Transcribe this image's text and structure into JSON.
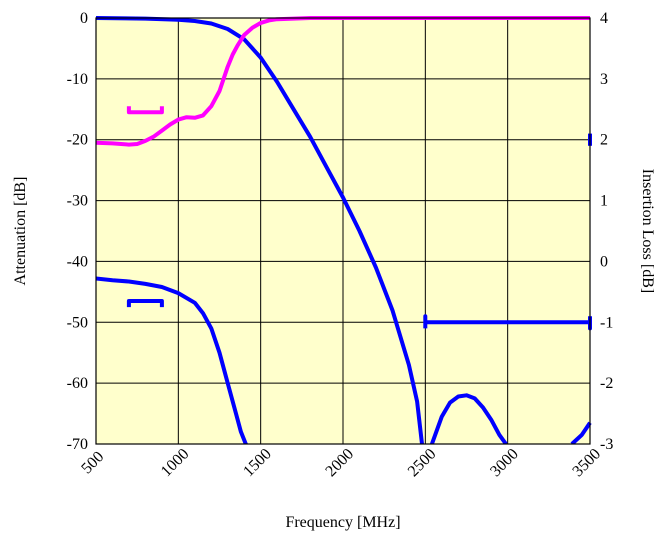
{
  "chart_data": {
    "type": "line",
    "title": "",
    "xlabel": "Frequency [MHz]",
    "ylabel": "Attenuation [dB]",
    "y2label": "Insertion Loss [dB]",
    "xlim": [
      500,
      3500
    ],
    "ylim": [
      -70,
      0
    ],
    "y2lim": [
      -3,
      4
    ],
    "x_ticks": [
      500,
      1000,
      1500,
      2000,
      2500,
      3000,
      3500
    ],
    "y_ticks": [
      0,
      -10,
      -20,
      -30,
      -40,
      -50,
      -60,
      -70
    ],
    "y2_ticks": [
      4,
      3,
      2,
      1,
      0,
      -1,
      -2,
      -3
    ],
    "grid": true,
    "legend": "none",
    "plot_background": "#ffffcc",
    "series": [
      {
        "axis": "left",
        "color": "#0000ff",
        "x": [
          500,
          800,
          1000,
          1100,
          1200,
          1300,
          1400,
          1450,
          1500,
          1550,
          1600,
          1700,
          1800,
          1900,
          2000,
          2100,
          2200,
          2300,
          2400,
          2450,
          2480
        ],
        "y": [
          0,
          -0.1,
          -0.3,
          -0.5,
          -0.9,
          -1.8,
          -3.5,
          -5,
          -6.5,
          -8.5,
          -10.5,
          -15,
          -19.5,
          -24.5,
          -29.5,
          -35,
          -41,
          -48,
          -57,
          -63,
          -70
        ]
      },
      {
        "axis": "left",
        "color": "#0000ff",
        "x": [
          2540,
          2600,
          2650,
          2700,
          2750,
          2800,
          2850,
          2900,
          2950,
          2990
        ],
        "y": [
          -70,
          -65.5,
          -63.2,
          -62.2,
          -62.0,
          -62.5,
          -64.0,
          -66.0,
          -68.5,
          -70
        ]
      },
      {
        "axis": "left",
        "color": "#0000ff",
        "x": [
          3390,
          3450,
          3500
        ],
        "y": [
          -70,
          -68.5,
          -66.5
        ]
      },
      {
        "axis": "right",
        "color": "#ff00ff",
        "x": [
          500,
          600,
          700,
          750,
          800,
          850,
          900,
          950,
          1000,
          1050,
          1100,
          1150,
          1200,
          1250,
          1300,
          1330,
          1360,
          1400,
          1450,
          1500,
          1550,
          1600,
          1700,
          1800,
          2000,
          2500,
          3000,
          3500
        ],
        "y": [
          1.95,
          1.94,
          1.92,
          1.93,
          1.98,
          2.05,
          2.15,
          2.25,
          2.33,
          2.37,
          2.36,
          2.4,
          2.55,
          2.8,
          3.2,
          3.4,
          3.55,
          3.72,
          3.84,
          3.92,
          3.96,
          3.98,
          3.99,
          4.0,
          4.0,
          4.0,
          4.0,
          4.0
        ]
      },
      {
        "axis": "right",
        "color": "#ff00ff",
        "x": [
          700,
          700,
          900,
          900
        ],
        "y": [
          2.55,
          2.45,
          2.45,
          2.55
        ]
      },
      {
        "axis": "left",
        "color": "#0000ff",
        "x": [
          500,
          600,
          700,
          800,
          900,
          1000,
          1100,
          1150,
          1200,
          1250,
          1300,
          1350,
          1380,
          1410,
          1440
        ],
        "y": [
          -42.8,
          -43.1,
          -43.3,
          -43.7,
          -44.2,
          -45.2,
          -46.8,
          -48.5,
          -51,
          -55,
          -60,
          -65,
          -68,
          -70,
          -71.5
        ]
      },
      {
        "axis": "left",
        "color": "#0000ff",
        "x": [
          700,
          700,
          900,
          900
        ],
        "y": [
          -47.5,
          -46.5,
          -46.5,
          -47.5
        ]
      },
      {
        "axis": "right",
        "color": "#0000ff",
        "x": [
          2500,
          2500,
          2500,
          3500,
          3500,
          3500
        ],
        "y": [
          -1.1,
          -0.9,
          -1.0,
          -1.0,
          -1.1,
          -0.9
        ]
      },
      {
        "axis": "right",
        "color": "#0000ff",
        "x": [
          3500,
          3500
        ],
        "y": [
          1.9,
          2.1
        ]
      }
    ]
  }
}
